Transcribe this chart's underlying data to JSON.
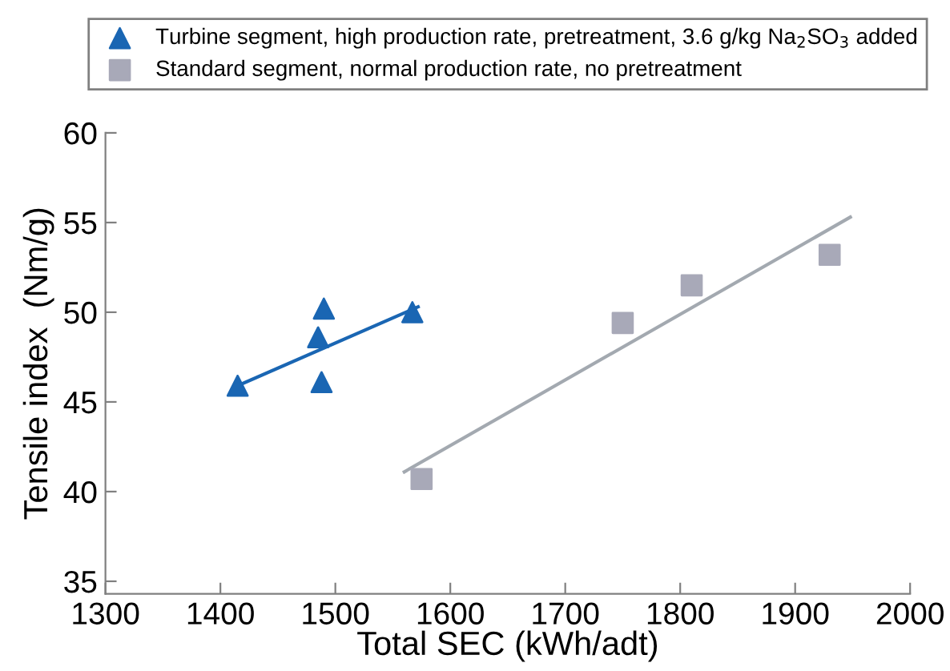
{
  "chart_data": {
    "type": "scatter",
    "xlabel": "Total SEC (kWh/adt)",
    "ylabel": "Tensile index  (Nm/g)",
    "series": [
      {
        "name": "Turbine segment, high production rate, pretreatment, 3.6 g/kg Na$_{2}$SO$_{3}$ added",
        "color": "#1a66b3",
        "marker": "triangle",
        "x": [
          1415,
          1485,
          1490,
          1488,
          1567
        ],
        "values": [
          45.9,
          48.6,
          50.2,
          46.1,
          50.0
        ]
      },
      {
        "name": "Standard segment, normal production rate, no pretreatment",
        "color": "#a8a9b8",
        "marker": "square",
        "x": [
          1575,
          1750,
          1810,
          1930
        ],
        "values": [
          40.7,
          49.4,
          51.5,
          53.2
        ]
      },
      {
        "type": "line",
        "color": "#1a66b3",
        "x": [
          1415,
          1572
        ],
        "values": [
          45.9,
          50.3
        ]
      },
      {
        "type": "line",
        "color": "#a3a9b0",
        "x": [
          1560,
          1948
        ],
        "values": [
          41.1,
          55.3
        ]
      }
    ],
    "xlim": [
      1300,
      2000
    ],
    "xticks": [
      1300,
      1400,
      1500,
      1600,
      1700,
      1800,
      1900,
      2000
    ],
    "ylim": [
      34.3,
      60
    ],
    "yticks": [
      35,
      40,
      45,
      50,
      55,
      60
    ],
    "grid": false,
    "legend": "top"
  }
}
